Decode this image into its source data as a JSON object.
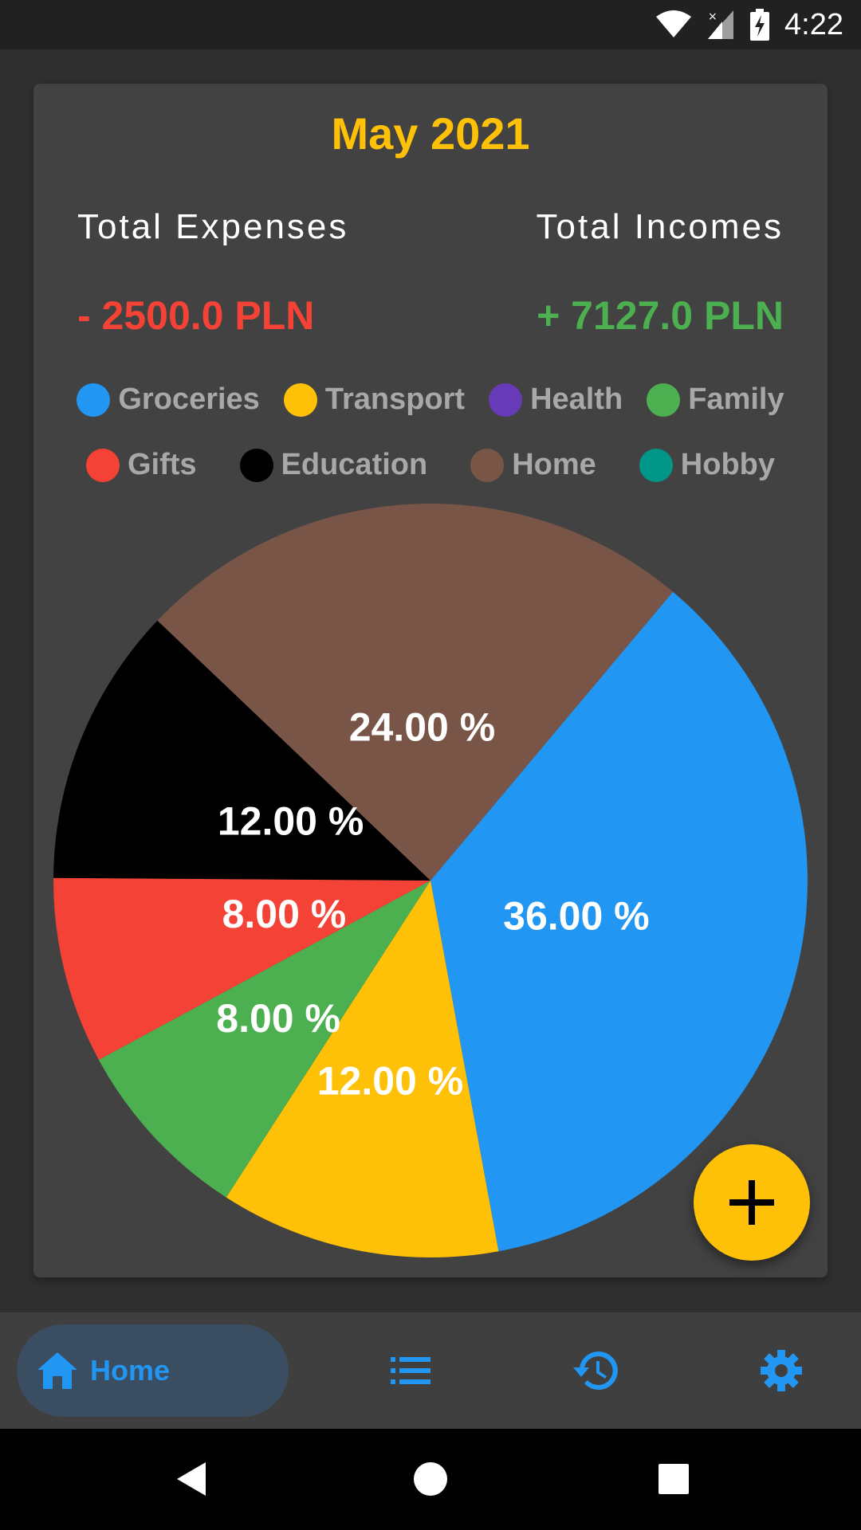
{
  "status_bar": {
    "time": "4:22"
  },
  "card": {
    "month": "May 2021",
    "total_expenses_label": "Total Expenses",
    "total_incomes_label": "Total Incomes",
    "total_expenses_value": "- 2500.0 PLN",
    "total_incomes_value": "+ 7127.0 PLN"
  },
  "legend": [
    {
      "label": "Groceries",
      "color": "#2196F3"
    },
    {
      "label": "Transport",
      "color": "#FFC107"
    },
    {
      "label": "Health",
      "color": "#673AB7"
    },
    {
      "label": "Family",
      "color": "#4CAF50"
    },
    {
      "label": "Gifts",
      "color": "#F44336"
    },
    {
      "label": "Education",
      "color": "#000000"
    },
    {
      "label": "Home",
      "color": "#795548"
    },
    {
      "label": "Hobby",
      "color": "#009688"
    }
  ],
  "chart_data": {
    "type": "pie",
    "slices": [
      {
        "category": "Groceries",
        "value": 36.0,
        "label": "36.00 %",
        "color": "#2196F3"
      },
      {
        "category": "Transport",
        "value": 12.0,
        "label": "12.00 %",
        "color": "#FFC107"
      },
      {
        "category": "Family",
        "value": 8.0,
        "label": "8.00 %",
        "color": "#4CAF50"
      },
      {
        "category": "Gifts",
        "value": 8.0,
        "label": "8.00 %",
        "color": "#F44336"
      },
      {
        "category": "Education",
        "value": 12.0,
        "label": "12.00 %",
        "color": "#000000"
      },
      {
        "category": "Home",
        "value": 24.0,
        "label": "24.00 %",
        "color": "#795548"
      }
    ]
  },
  "fab": {
    "icon": "plus-icon"
  },
  "bottom_nav": {
    "home_label": "Home",
    "accent": "#2196F3",
    "icons": [
      "home-icon",
      "list-icon",
      "history-icon",
      "settings-icon"
    ]
  }
}
